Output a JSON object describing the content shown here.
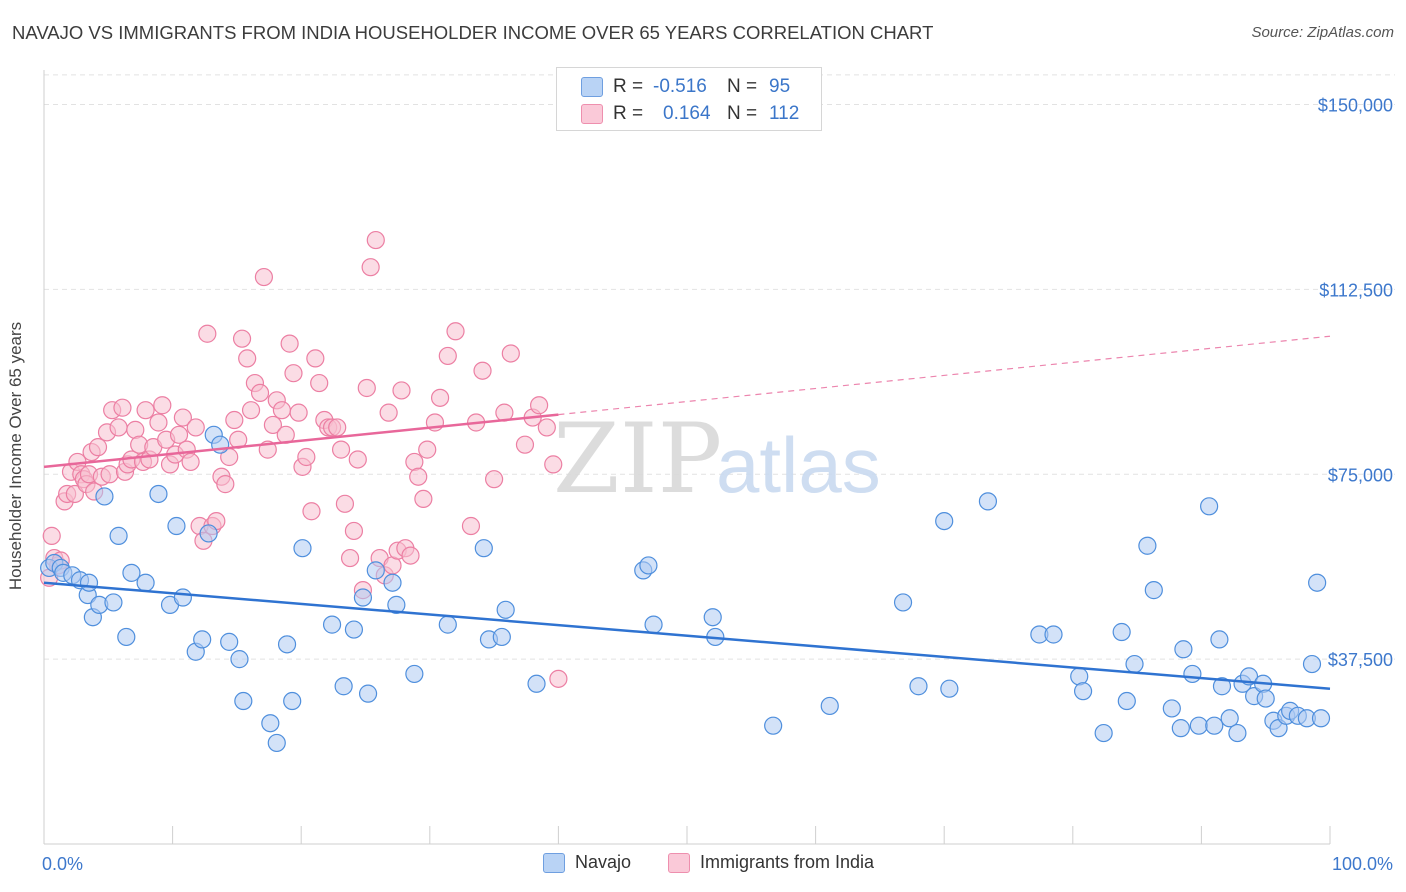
{
  "header": {
    "title": "NAVAJO VS IMMIGRANTS FROM INDIA HOUSEHOLDER INCOME OVER 65 YEARS CORRELATION CHART",
    "source": "Source: ZipAtlas.com"
  },
  "watermark": {
    "zip": "ZIP",
    "atlas": "atlas"
  },
  "legend": {
    "rows": [
      {
        "r_label": "R =",
        "r_value": "-0.516",
        "n_label": "N =",
        "n_value": "95",
        "color": "#a8c8f0"
      },
      {
        "r_label": "R =",
        "r_value": "0.164",
        "n_label": "N =",
        "n_value": "112",
        "color": "#f7b6c8"
      }
    ]
  },
  "bottom_legend": {
    "navajo": "Navajo",
    "india": "Immigrants from India"
  },
  "chart_data": {
    "type": "scatter",
    "title": "NAVAJO VS IMMIGRANTS FROM INDIA HOUSEHOLDER INCOME OVER 65 YEARS CORRELATION CHART",
    "xlabel": "",
    "ylabel": "Householder Income Over 65 years",
    "xlim": [
      0,
      100
    ],
    "ylim": [
      0,
      157000
    ],
    "x_tick_labels": [
      "0.0%",
      "100.0%"
    ],
    "y_ticks": [
      37500,
      75000,
      112500,
      150000
    ],
    "y_tick_labels": [
      "$37,500",
      "$75,000",
      "$112,500",
      "$150,000"
    ],
    "grid": true,
    "legend_position": "top-center",
    "colors": {
      "navajo": "#4f8fdd",
      "navajo_fill": "#aecbf2",
      "india": "#ec7fa3",
      "india_fill": "#f7bfd0",
      "navajo_line": "#2f73d1",
      "india_line": "#e8679a",
      "axis_text": "#3d78cc"
    },
    "series": [
      {
        "name": "Navajo",
        "r": -0.516,
        "n": 95,
        "trend": {
          "x": [
            0,
            100
          ],
          "y": [
            53000,
            31500
          ],
          "solid_to": 100
        },
        "points": [
          [
            0.4,
            56000
          ],
          [
            0.8,
            57000
          ],
          [
            1.3,
            56000
          ],
          [
            1.5,
            55000
          ],
          [
            2.2,
            54500
          ],
          [
            2.8,
            53500
          ],
          [
            3.4,
            50500
          ],
          [
            3.5,
            53000
          ],
          [
            3.8,
            46000
          ],
          [
            4.3,
            48500
          ],
          [
            4.7,
            70500
          ],
          [
            5.4,
            49000
          ],
          [
            5.8,
            62500
          ],
          [
            6.4,
            42000
          ],
          [
            6.8,
            55000
          ],
          [
            7.9,
            53000
          ],
          [
            8.9,
            71000
          ],
          [
            9.8,
            48500
          ],
          [
            10.3,
            64500
          ],
          [
            10.8,
            50000
          ],
          [
            11.8,
            39000
          ],
          [
            12.3,
            41500
          ],
          [
            12.8,
            63000
          ],
          [
            13.2,
            83000
          ],
          [
            13.7,
            81000
          ],
          [
            14.4,
            41000
          ],
          [
            15.2,
            37500
          ],
          [
            15.5,
            29000
          ],
          [
            17.6,
            24500
          ],
          [
            18.1,
            20500
          ],
          [
            18.9,
            40500
          ],
          [
            19.3,
            29000
          ],
          [
            20.1,
            60000
          ],
          [
            22.4,
            44500
          ],
          [
            23.3,
            32000
          ],
          [
            24.1,
            43500
          ],
          [
            24.8,
            50000
          ],
          [
            25.2,
            30500
          ],
          [
            25.8,
            55500
          ],
          [
            27.1,
            53000
          ],
          [
            27.4,
            48500
          ],
          [
            28.8,
            34500
          ],
          [
            31.4,
            44500
          ],
          [
            34.2,
            60000
          ],
          [
            34.6,
            41500
          ],
          [
            35.6,
            42000
          ],
          [
            35.9,
            47500
          ],
          [
            38.3,
            32500
          ],
          [
            46.6,
            55500
          ],
          [
            47.0,
            56500
          ],
          [
            47.4,
            44500
          ],
          [
            52.0,
            46000
          ],
          [
            52.2,
            42000
          ],
          [
            56.7,
            24000
          ],
          [
            61.1,
            28000
          ],
          [
            66.8,
            49000
          ],
          [
            68.0,
            32000
          ],
          [
            70.0,
            65500
          ],
          [
            70.4,
            31500
          ],
          [
            73.4,
            69500
          ],
          [
            77.4,
            42500
          ],
          [
            78.5,
            42500
          ],
          [
            80.5,
            34000
          ],
          [
            80.8,
            31000
          ],
          [
            82.4,
            22500
          ],
          [
            83.8,
            43000
          ],
          [
            84.2,
            29000
          ],
          [
            84.8,
            36500
          ],
          [
            85.8,
            60500
          ],
          [
            86.3,
            51500
          ],
          [
            87.7,
            27500
          ],
          [
            88.4,
            23500
          ],
          [
            88.6,
            39500
          ],
          [
            89.3,
            34500
          ],
          [
            89.8,
            24000
          ],
          [
            90.6,
            68500
          ],
          [
            91.0,
            24000
          ],
          [
            91.4,
            41500
          ],
          [
            91.6,
            32000
          ],
          [
            92.2,
            25500
          ],
          [
            92.8,
            22500
          ],
          [
            93.2,
            32500
          ],
          [
            93.7,
            34000
          ],
          [
            94.1,
            30000
          ],
          [
            94.8,
            32500
          ],
          [
            95.0,
            29500
          ],
          [
            95.6,
            25000
          ],
          [
            96.0,
            23500
          ],
          [
            96.6,
            26000
          ],
          [
            96.9,
            27000
          ],
          [
            97.5,
            26000
          ],
          [
            98.2,
            25500
          ],
          [
            98.6,
            36500
          ],
          [
            99.0,
            53000
          ],
          [
            99.3,
            25500
          ]
        ]
      },
      {
        "name": "Immigrants from India",
        "r": 0.164,
        "n": 112,
        "trend": {
          "x": [
            0,
            100
          ],
          "y": [
            76500,
            103000
          ],
          "solid_to": 40
        },
        "points": [
          [
            0.4,
            54000
          ],
          [
            0.6,
            62500
          ],
          [
            0.8,
            58000
          ],
          [
            1.1,
            56500
          ],
          [
            1.3,
            57500
          ],
          [
            1.6,
            69500
          ],
          [
            1.8,
            71000
          ],
          [
            2.1,
            75500
          ],
          [
            2.4,
            71000
          ],
          [
            2.6,
            77500
          ],
          [
            2.9,
            75000
          ],
          [
            3.1,
            74000
          ],
          [
            3.3,
            73000
          ],
          [
            3.5,
            75000
          ],
          [
            3.7,
            79500
          ],
          [
            3.9,
            71500
          ],
          [
            4.2,
            80500
          ],
          [
            4.5,
            74500
          ],
          [
            4.9,
            83500
          ],
          [
            5.1,
            75000
          ],
          [
            5.3,
            88000
          ],
          [
            5.8,
            84500
          ],
          [
            6.1,
            88500
          ],
          [
            6.3,
            75500
          ],
          [
            6.5,
            77000
          ],
          [
            6.8,
            78000
          ],
          [
            7.1,
            84000
          ],
          [
            7.4,
            81000
          ],
          [
            7.7,
            77500
          ],
          [
            7.9,
            88000
          ],
          [
            8.2,
            78000
          ],
          [
            8.5,
            80500
          ],
          [
            8.9,
            85500
          ],
          [
            9.2,
            89000
          ],
          [
            9.5,
            82000
          ],
          [
            9.8,
            77000
          ],
          [
            10.2,
            79000
          ],
          [
            10.5,
            83000
          ],
          [
            10.8,
            86500
          ],
          [
            11.1,
            80000
          ],
          [
            11.4,
            77500
          ],
          [
            11.8,
            84500
          ],
          [
            12.1,
            64500
          ],
          [
            12.4,
            61500
          ],
          [
            12.7,
            103500
          ],
          [
            13.1,
            64500
          ],
          [
            13.4,
            65500
          ],
          [
            13.8,
            74500
          ],
          [
            14.1,
            73000
          ],
          [
            14.4,
            78500
          ],
          [
            14.8,
            86000
          ],
          [
            15.1,
            82000
          ],
          [
            15.4,
            102500
          ],
          [
            15.8,
            98500
          ],
          [
            16.1,
            88000
          ],
          [
            16.4,
            93500
          ],
          [
            16.8,
            91500
          ],
          [
            17.1,
            115000
          ],
          [
            17.4,
            80000
          ],
          [
            17.8,
            85000
          ],
          [
            18.1,
            90000
          ],
          [
            18.5,
            88000
          ],
          [
            18.8,
            83000
          ],
          [
            19.1,
            101500
          ],
          [
            19.4,
            95500
          ],
          [
            19.8,
            87500
          ],
          [
            20.1,
            76500
          ],
          [
            20.4,
            78500
          ],
          [
            20.8,
            67500
          ],
          [
            21.1,
            98500
          ],
          [
            21.4,
            93500
          ],
          [
            21.8,
            86000
          ],
          [
            22.1,
            84500
          ],
          [
            22.4,
            84500
          ],
          [
            22.8,
            84500
          ],
          [
            23.1,
            80000
          ],
          [
            23.4,
            69000
          ],
          [
            23.8,
            58000
          ],
          [
            24.1,
            63500
          ],
          [
            24.4,
            78000
          ],
          [
            24.8,
            51500
          ],
          [
            25.1,
            92500
          ],
          [
            25.4,
            117000
          ],
          [
            25.8,
            122500
          ],
          [
            26.1,
            58000
          ],
          [
            26.5,
            54500
          ],
          [
            26.8,
            87500
          ],
          [
            27.1,
            56500
          ],
          [
            27.5,
            59500
          ],
          [
            27.8,
            92000
          ],
          [
            28.1,
            60000
          ],
          [
            28.5,
            58500
          ],
          [
            28.8,
            77500
          ],
          [
            29.1,
            74500
          ],
          [
            29.5,
            70000
          ],
          [
            29.8,
            80000
          ],
          [
            30.4,
            85500
          ],
          [
            30.8,
            90500
          ],
          [
            31.4,
            99000
          ],
          [
            32.0,
            104000
          ],
          [
            33.2,
            64500
          ],
          [
            33.6,
            85500
          ],
          [
            34.1,
            96000
          ],
          [
            35.0,
            74000
          ],
          [
            35.8,
            87500
          ],
          [
            36.3,
            99500
          ],
          [
            37.4,
            81000
          ],
          [
            38.0,
            86500
          ],
          [
            38.5,
            89000
          ],
          [
            39.1,
            84500
          ],
          [
            39.6,
            77000
          ],
          [
            40.0,
            33500
          ]
        ]
      }
    ]
  }
}
